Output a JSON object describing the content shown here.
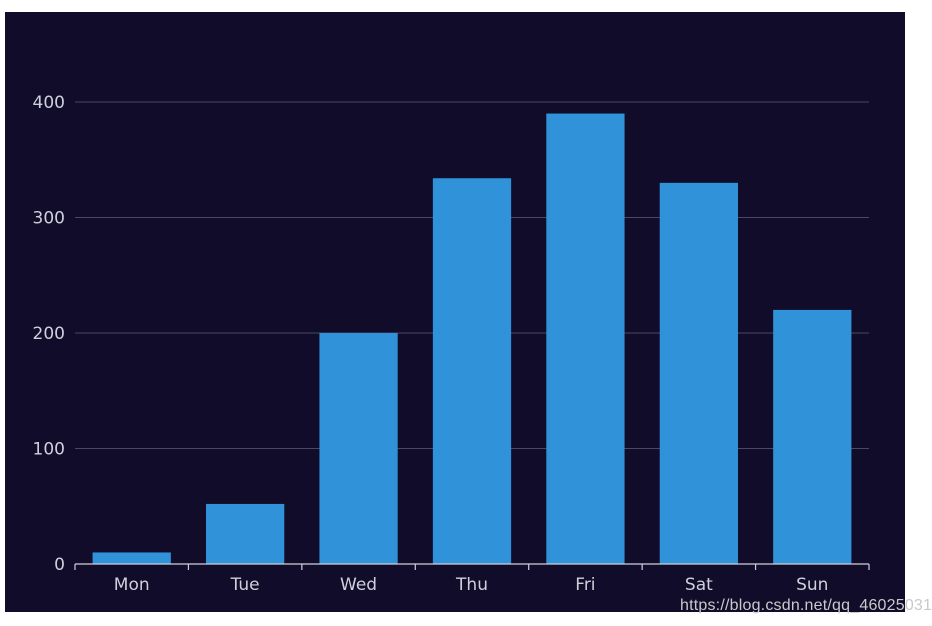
{
  "chart_data": {
    "type": "bar",
    "categories": [
      "Mon",
      "Tue",
      "Wed",
      "Thu",
      "Fri",
      "Sat",
      "Sun"
    ],
    "values": [
      10,
      52,
      200,
      334,
      390,
      330,
      220
    ],
    "title": "",
    "xlabel": "",
    "ylabel": "",
    "ylim": [
      0,
      400
    ],
    "yticks": [
      "0",
      "100",
      "200",
      "300",
      "400"
    ],
    "grid": true,
    "bar_color": "#3092d8",
    "background_color": "#100c2a",
    "axis_color": "#cfd0dc",
    "grid_color": "#4a4863"
  },
  "watermark": "https://blog.csdn.net/qq_46025031"
}
